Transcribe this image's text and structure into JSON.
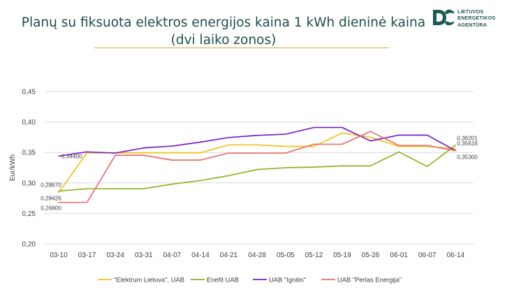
{
  "title_line1": "Planų su fiksuota elektros energijos kaina 1 kWh dieninė kaina",
  "title_line2": "(dvi laiko zonos)",
  "logo": {
    "lines": [
      "LIETUVOS",
      "ENERGETIKOS",
      "AGENTŪRA"
    ],
    "color": "#1d5a55"
  },
  "colors": {
    "title": "#1d4e4a",
    "title_rule": "#d4ac3c",
    "grid": "#d9d9d9"
  },
  "chart_data": {
    "type": "line",
    "ylabel": "Eur/kWh",
    "ylim": [
      0.2,
      0.45
    ],
    "yticks": [
      "0,20",
      "0,25",
      "0,30",
      "0,35",
      "0,40",
      "0,45"
    ],
    "categories": [
      "03-10",
      "03-17",
      "03-24",
      "03-31",
      "04-07",
      "04-14",
      "04-21",
      "04-28",
      "05-05",
      "05-12",
      "05-19",
      "05-26",
      "06-01",
      "06-07",
      "06-14"
    ],
    "grid": "horizontal",
    "legend_position": "bottom",
    "series": [
      {
        "name": "\"Elektrum Lietuva\", UAB",
        "color": "#f2c21b",
        "values": [
          0.2843,
          0.3495,
          0.3495,
          0.3495,
          0.3495,
          0.3495,
          0.3625,
          0.3625,
          0.36,
          0.36,
          0.382,
          0.375,
          0.36,
          0.36,
          0.3562
        ]
      },
      {
        "name": "Enefit UAB",
        "color": "#8db31f",
        "values": [
          0.2867,
          0.2905,
          0.2905,
          0.2905,
          0.298,
          0.304,
          0.312,
          0.322,
          0.325,
          0.326,
          0.328,
          0.328,
          0.351,
          0.327,
          0.362
        ]
      },
      {
        "name": "UAB \"Ignitis\"",
        "color": "#7a1fc4",
        "values": [
          0.344,
          0.351,
          0.349,
          0.3575,
          0.3605,
          0.367,
          0.3745,
          0.378,
          0.38,
          0.391,
          0.391,
          0.369,
          0.3785,
          0.3785,
          0.353
        ]
      },
      {
        "name": "UAB \"Perlas Energija\"",
        "color": "#e8716a",
        "values": [
          0.268,
          0.268,
          0.3455,
          0.3455,
          0.3375,
          0.3375,
          0.349,
          0.349,
          0.349,
          0.3635,
          0.3635,
          0.3845,
          0.3615,
          0.3615,
          0.353
        ]
      }
    ],
    "annotations": [
      {
        "text": "0,34400",
        "series": 2,
        "index": 0,
        "pos": "right"
      },
      {
        "text": "0,28670",
        "series": 1,
        "index": 0,
        "pos": "above"
      },
      {
        "text": "0,28426",
        "series": 0,
        "index": 0,
        "pos": "below"
      },
      {
        "text": "0,26800",
        "series": 3,
        "index": 0,
        "pos": "below"
      },
      {
        "text": "0,36201",
        "series": 1,
        "index": 14,
        "pos": "above"
      },
      {
        "text": "0,35616",
        "series": 0,
        "index": 14,
        "pos": "right"
      },
      {
        "text": "0,35300",
        "series": 3,
        "index": 14,
        "pos": "below"
      }
    ]
  }
}
